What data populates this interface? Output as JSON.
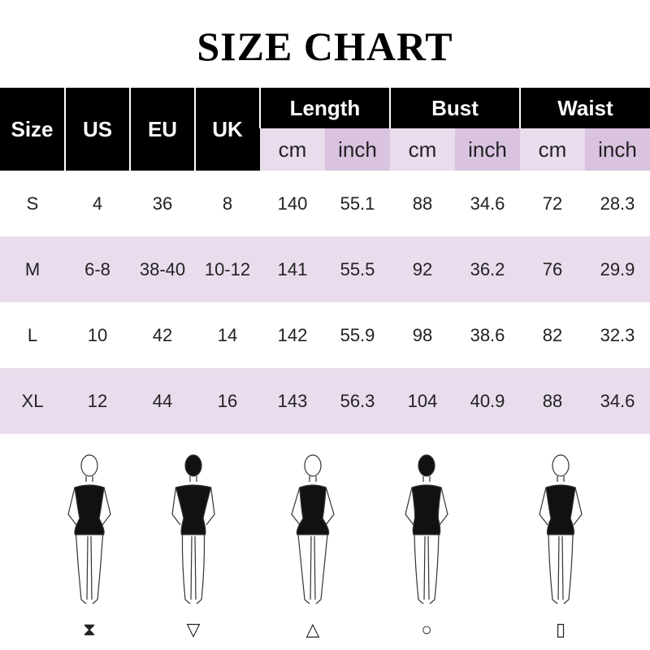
{
  "title": "SIZE CHART",
  "headers": {
    "size": "Size",
    "us": "US",
    "eu": "EU",
    "uk": "UK",
    "length": "Length",
    "bust": "Bust",
    "waist": "Waist",
    "cm": "cm",
    "inch": "inch"
  },
  "rows": [
    [
      "S",
      "4",
      "36",
      "8",
      "140",
      "55.1",
      "88",
      "34.6",
      "72",
      "28.3"
    ],
    [
      "M",
      "6-8",
      "38-40",
      "10-12",
      "141",
      "55.5",
      "92",
      "36.2",
      "76",
      "29.9"
    ],
    [
      "L",
      "10",
      "42",
      "14",
      "142",
      "55.9",
      "98",
      "38.6",
      "82",
      "32.3"
    ],
    [
      "XL",
      "12",
      "44",
      "16",
      "143",
      "56.3",
      "104",
      "40.9",
      "88",
      "34.6"
    ]
  ],
  "body_shapes": [
    {
      "name": "hourglass",
      "glyph": "⧗"
    },
    {
      "name": "inverted-triangle",
      "glyph": "▽"
    },
    {
      "name": "triangle",
      "glyph": "△"
    },
    {
      "name": "oval",
      "glyph": "○"
    },
    {
      "name": "rectangle",
      "glyph": "▯"
    }
  ],
  "colors": {
    "header": "#000000",
    "lavender": "#e9dcec",
    "lavender_dark": "#d9c3df"
  }
}
